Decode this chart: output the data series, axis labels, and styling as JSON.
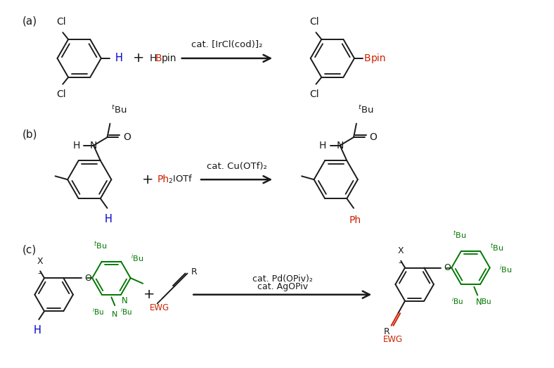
{
  "bg_color": "#ffffff",
  "label_a": "(a)",
  "label_b": "(b)",
  "label_c": "(c)",
  "cat_a": "cat. [IrCl(cod)]₂",
  "cat_b": "cat. Cu(OTf)₂",
  "cat_c1": "cat. Pd(OPiv)₂",
  "cat_c2": "cat. AgOPiv",
  "color_black": "#1a1a1a",
  "color_red": "#cc2200",
  "color_blue": "#0000cc",
  "color_green": "#007700",
  "figsize": [
    7.88,
    5.23
  ],
  "dpi": 100
}
